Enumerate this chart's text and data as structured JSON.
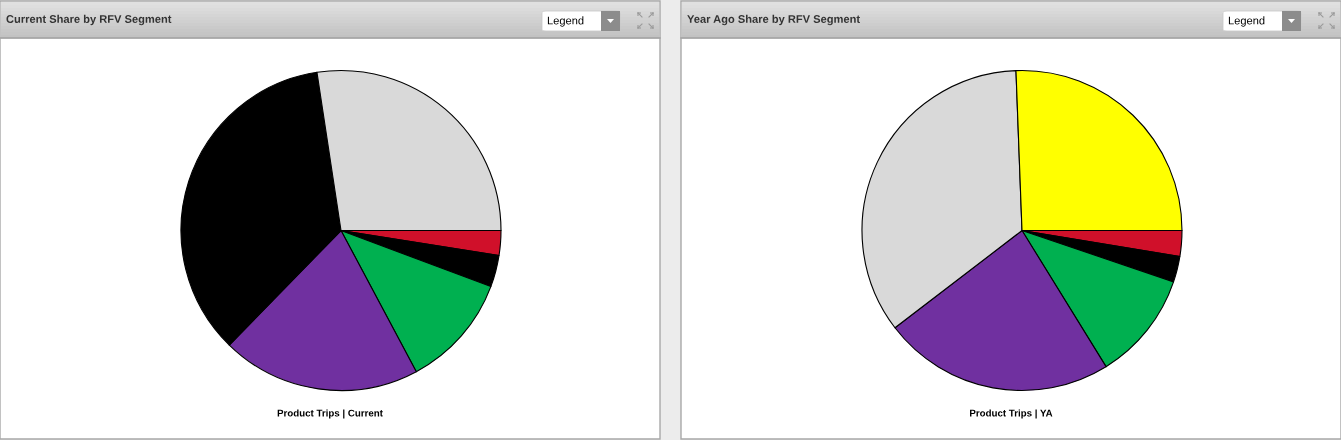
{
  "chart_data": [
    {
      "type": "pie",
      "title": "Current Share by RFV Segment",
      "xlabel": "Product Trips | Current",
      "annotations": [
        "Legend"
      ],
      "categories": [
        null,
        null,
        null,
        null,
        null,
        null
      ],
      "values": [
        2.5,
        3.2,
        11.5,
        20.1,
        35.3,
        27.4
      ],
      "colors": [
        "#d0102a",
        "#000000",
        "#00b050",
        "#7030a0",
        "#000000",
        "#d9d9d9"
      ]
    },
    {
      "type": "pie",
      "title": "Year Ago Share by RFV Segment",
      "xlabel": "Product Trips | YA",
      "annotations": [
        "Legend"
      ],
      "categories": [
        null,
        null,
        null,
        null,
        null,
        null
      ],
      "values": [
        2.6,
        2.6,
        11.0,
        23.4,
        34.8,
        25.6
      ],
      "colors": [
        "#d0102a",
        "#000000",
        "#00b050",
        "#7030a0",
        "#d9d9d9",
        "#ffff00"
      ]
    }
  ]
}
